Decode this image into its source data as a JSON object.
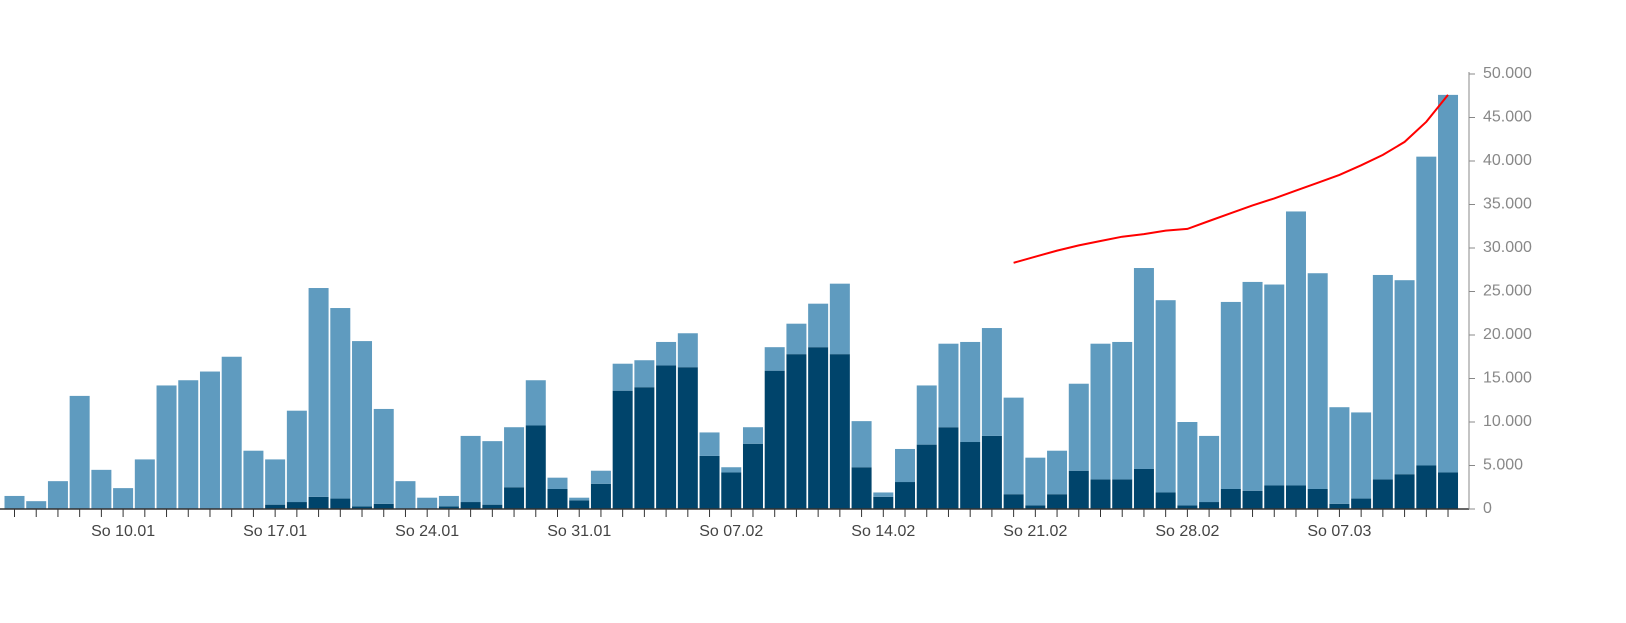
{
  "chart_data": {
    "type": "bar",
    "stacked": true,
    "categories": [
      null,
      null,
      null,
      null,
      null,
      "So 10.01",
      null,
      null,
      null,
      null,
      null,
      null,
      "So 17.01",
      null,
      null,
      null,
      null,
      null,
      null,
      "So 24.01",
      null,
      null,
      null,
      null,
      null,
      null,
      "So 31.01",
      null,
      null,
      null,
      null,
      null,
      null,
      "So 07.02",
      null,
      null,
      null,
      null,
      null,
      null,
      "So 14.02",
      null,
      null,
      null,
      null,
      null,
      null,
      "So 21.02",
      null,
      null,
      null,
      null,
      null,
      null,
      "So 28.02",
      null,
      null,
      null,
      null,
      null,
      null,
      "So 07.03",
      null,
      null,
      null,
      null,
      null
    ],
    "series": [
      {
        "type": "bar",
        "color": "#00446b",
        "values": [
          0,
          0,
          0,
          0,
          0,
          0,
          0,
          0,
          0,
          0,
          0,
          0,
          500,
          800,
          1400,
          1200,
          300,
          600,
          0,
          0,
          300,
          800,
          500,
          2500,
          9600,
          2300,
          1000,
          2900,
          13600,
          14000,
          16500,
          16300,
          6100,
          4200,
          7500,
          15900,
          17800,
          18600,
          17800,
          4800,
          1400,
          3100,
          7400,
          9400,
          7700,
          8400,
          1700,
          400,
          1700,
          4400,
          3400,
          3400,
          4600,
          1900,
          400,
          800,
          2300,
          2100,
          2700,
          2700,
          2300,
          600,
          1200,
          3400,
          4000,
          5000,
          4200
        ]
      },
      {
        "type": "bar",
        "color": "#5f9bbf",
        "values": [
          1500,
          900,
          3200,
          13000,
          4500,
          2400,
          5700,
          14200,
          14800,
          15800,
          17500,
          6700,
          5200,
          10500,
          24000,
          21900,
          19000,
          10900,
          3200,
          1300,
          1200,
          7600,
          7300,
          6900,
          5200,
          1300,
          300,
          1500,
          3100,
          3100,
          2700,
          3900,
          2700,
          600,
          1900,
          2700,
          3500,
          5000,
          8100,
          5300,
          500,
          3800,
          6800,
          9600,
          11500,
          12400,
          11100,
          5500,
          5000,
          10000,
          15600,
          15800,
          23100,
          22100,
          9600,
          7600,
          21500,
          24000,
          23100,
          31500,
          24800,
          11100,
          9900,
          23500,
          22300,
          35500,
          43400
        ]
      },
      {
        "type": "line",
        "color": "#ff0000",
        "values": [
          null,
          null,
          null,
          null,
          null,
          null,
          null,
          null,
          null,
          null,
          null,
          null,
          null,
          null,
          null,
          null,
          null,
          null,
          null,
          null,
          null,
          null,
          null,
          null,
          null,
          null,
          null,
          null,
          null,
          null,
          null,
          null,
          null,
          null,
          null,
          null,
          null,
          null,
          null,
          null,
          null,
          null,
          null,
          null,
          null,
          null,
          28300,
          29000,
          29700,
          30300,
          30800,
          31300,
          31600,
          32000,
          32200,
          33100,
          34000,
          34900,
          35700,
          36600,
          37500,
          38400,
          39500,
          40700,
          42200,
          44500,
          47600
        ]
      }
    ],
    "ylim": [
      0,
      50000
    ],
    "yticks": [
      0,
      {
        "value": 5000,
        "label": "5.000"
      },
      {
        "value": 10000,
        "label": "10.000"
      },
      {
        "value": 15000,
        "label": "15.000"
      },
      {
        "value": 20000,
        "label": "20.000"
      },
      {
        "value": 25000,
        "label": "25.000"
      },
      {
        "value": 30000,
        "label": "30.000"
      },
      {
        "value": 35000,
        "label": "35.000"
      },
      {
        "value": 40000,
        "label": "40.000"
      },
      {
        "value": 45000,
        "label": "45.000"
      },
      {
        "value": 50000,
        "label": "50.000"
      }
    ],
    "grid": false
  }
}
